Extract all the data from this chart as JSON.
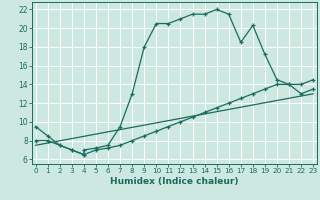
{
  "xlabel": "Humidex (Indice chaleur)",
  "bg_color": "#cce8e0",
  "grid_color": "#ffffff",
  "line_color": "#1a6b60",
  "xlim": [
    -0.3,
    23.3
  ],
  "ylim": [
    5.5,
    22.8
  ],
  "yticks": [
    6,
    8,
    10,
    12,
    14,
    16,
    18,
    20,
    22
  ],
  "xticks": [
    0,
    1,
    2,
    3,
    4,
    5,
    6,
    7,
    8,
    9,
    10,
    11,
    12,
    13,
    14,
    15,
    16,
    17,
    18,
    19,
    20,
    21,
    22,
    23
  ],
  "line1_x": [
    0,
    1,
    2,
    3,
    4,
    4,
    5,
    6,
    7,
    8,
    9,
    10,
    11,
    12,
    13,
    14,
    15,
    16,
    17,
    18,
    19,
    20,
    21,
    22,
    23
  ],
  "line1_y": [
    9.5,
    8.5,
    7.5,
    7.0,
    6.5,
    7.0,
    7.2,
    7.5,
    9.5,
    13.0,
    18.0,
    20.5,
    20.5,
    21.0,
    21.5,
    21.5,
    22.0,
    21.5,
    18.5,
    20.3,
    17.2,
    14.5,
    14.0,
    14.0,
    14.5
  ],
  "line2_x": [
    0,
    1,
    2,
    3,
    4,
    5,
    6,
    7,
    8,
    9,
    10,
    11,
    12,
    13,
    14,
    15,
    16,
    17,
    18,
    19,
    20,
    21,
    22,
    23
  ],
  "line2_y": [
    8.0,
    8.0,
    7.5,
    7.0,
    6.5,
    7.0,
    7.2,
    7.5,
    8.0,
    8.5,
    9.0,
    9.5,
    10.0,
    10.5,
    11.0,
    11.5,
    12.0,
    12.5,
    13.0,
    13.5,
    14.0,
    14.0,
    13.0,
    13.5
  ],
  "line3_x": [
    0,
    23
  ],
  "line3_y": [
    7.5,
    13.0
  ],
  "figwidth": 3.2,
  "figheight": 2.0,
  "dpi": 100
}
